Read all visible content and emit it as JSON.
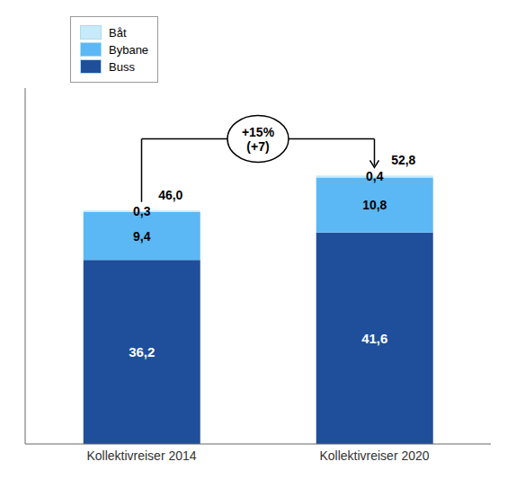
{
  "chart_data": {
    "type": "bar",
    "stacked": true,
    "categories": [
      "Kollektivreiser 2014",
      "Kollektivreiser 2020"
    ],
    "series": [
      {
        "name": "Buss",
        "color": "#1F4E9B",
        "values": [
          36.2,
          41.6
        ],
        "value_labels": [
          "36,2",
          "41,6"
        ]
      },
      {
        "name": "Bybane",
        "color": "#5BB8F5",
        "values": [
          9.4,
          10.8
        ],
        "value_labels": [
          "9,4",
          "10,8"
        ]
      },
      {
        "name": "Båt",
        "color": "#C9EAF8",
        "values": [
          0.3,
          0.4
        ],
        "value_labels": [
          "0,3",
          "0,4"
        ]
      }
    ],
    "totals": [
      46.0,
      52.8
    ],
    "total_labels": [
      "46,0",
      "52,8"
    ],
    "annotation": "+15%\n(+7)",
    "ylim": [
      0,
      70
    ],
    "grid": false,
    "legend": "upper left",
    "data_labels": true,
    "tick_labels": "x"
  }
}
